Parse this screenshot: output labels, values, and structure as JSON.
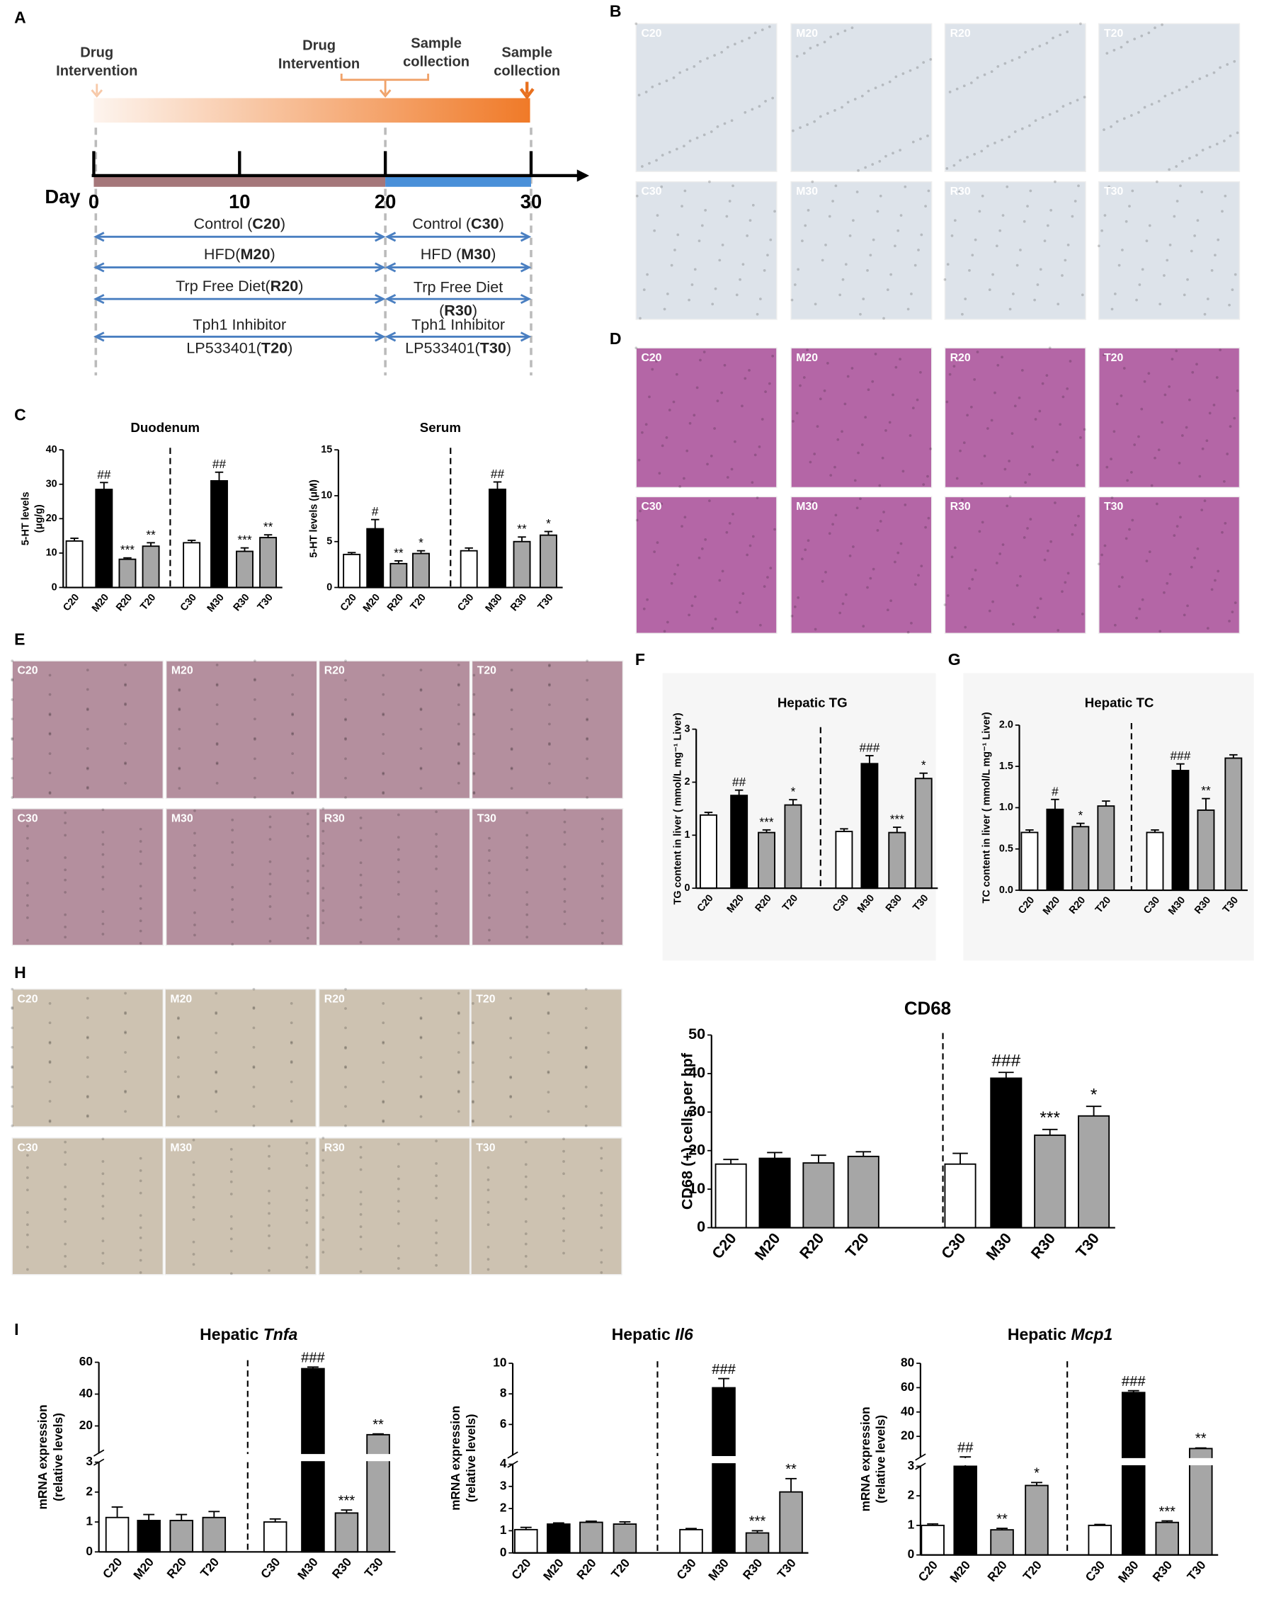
{
  "panel_labels": [
    "A",
    "B",
    "C",
    "D",
    "E",
    "F",
    "G",
    "H",
    "I"
  ],
  "timeline": {
    "events": [
      [
        "Drug",
        "Intervention"
      ],
      [
        "Drug",
        "Intervention"
      ],
      [
        "Sample",
        "collection"
      ],
      [
        "Sample",
        "collection"
      ]
    ],
    "day_label": "Day",
    "days": [
      0,
      10,
      20,
      30
    ],
    "arms_first": [
      {
        "lines": [
          [
            "Control (",
            {
              "bold": "C20"
            },
            ")"
          ]
        ]
      },
      {
        "lines": [
          [
            "HFD(",
            {
              "bold": "M20"
            },
            ")"
          ]
        ]
      },
      {
        "lines": [
          [
            "Trp Free Diet(",
            {
              "bold": "R20"
            },
            ")"
          ]
        ]
      },
      {
        "lines": [
          [
            "Tph1 Inhibitor"
          ],
          [
            "LP533401(",
            {
              "bold": "T20"
            },
            ")"
          ]
        ]
      }
    ],
    "arms_second": [
      {
        "lines": [
          [
            "Control (",
            {
              "bold": "C30"
            },
            ")"
          ]
        ]
      },
      {
        "lines": [
          [
            "HFD (",
            {
              "bold": "M30"
            },
            ")"
          ]
        ]
      },
      {
        "lines": [
          [
            "Trp Free Diet"
          ],
          [
            "(",
            {
              "bold": "R30"
            },
            ")"
          ]
        ]
      },
      {
        "lines": [
          [
            "Tph1 Inhibitor"
          ],
          [
            "LP533401(",
            {
              "bold": "T30"
            },
            ")"
          ]
        ]
      }
    ]
  },
  "micrographs": [
    {
      "labels": [
        "C20",
        "M20",
        "R20",
        "T20",
        "C30",
        "M30",
        "R30",
        "T30"
      ],
      "color": "#dde3ea"
    },
    {
      "labels": [
        "C20",
        "M20",
        "R20",
        "T20",
        "C30",
        "M30",
        "R30",
        "T30"
      ],
      "color": "#b466a6"
    },
    {
      "labels": [
        "C20",
        "M20",
        "R20",
        "T20",
        "C30",
        "M30",
        "R30",
        "T30"
      ],
      "color": "#b48f9e"
    },
    {
      "labels": [
        "C20",
        "M20",
        "R20",
        "T20",
        "C30",
        "M30",
        "R30",
        "T30"
      ],
      "color": "#cdc2b1"
    }
  ],
  "chart_data": [
    {
      "type": "bar",
      "title": "Duodenum",
      "ylabel": [
        "5-HT levels",
        "(μg/g)"
      ],
      "categories": [
        "C20",
        "M20",
        "R20",
        "T20",
        "C30",
        "M30",
        "R30",
        "T30"
      ],
      "values": [
        13.5,
        28.5,
        8.2,
        12,
        13,
        31,
        10.5,
        14.5
      ],
      "errors": [
        0.8,
        2,
        0.4,
        1,
        0.7,
        2.5,
        1,
        0.8
      ],
      "annotations": [
        null,
        "##",
        "***",
        "**",
        null,
        "##",
        "***",
        "**"
      ],
      "colors": [
        "#ffffff",
        "#000000",
        "#a6a6a6",
        "#a6a6a6",
        "#ffffff",
        "#000000",
        "#a6a6a6",
        "#a6a6a6"
      ],
      "ylim": [
        0,
        40
      ],
      "yticks": [
        0,
        10,
        20,
        30,
        40
      ]
    },
    {
      "type": "bar",
      "title": "Serum",
      "ylabel": [
        "5-HT levels (μM)"
      ],
      "categories": [
        "C20",
        "M20",
        "R20",
        "T20",
        "C30",
        "M30",
        "R30",
        "T30"
      ],
      "values": [
        3.6,
        6.4,
        2.6,
        3.7,
        4.0,
        10.7,
        5.0,
        5.7
      ],
      "errors": [
        0.2,
        1,
        0.3,
        0.3,
        0.3,
        0.8,
        0.5,
        0.4
      ],
      "annotations": [
        null,
        "#",
        "**",
        "*",
        null,
        "##",
        "**",
        "*"
      ],
      "colors": [
        "#ffffff",
        "#000000",
        "#a6a6a6",
        "#a6a6a6",
        "#ffffff",
        "#000000",
        "#a6a6a6",
        "#a6a6a6"
      ],
      "ylim": [
        0,
        15
      ],
      "yticks": [
        0,
        5,
        10,
        15
      ]
    },
    {
      "type": "bar",
      "title": "Hepatic TG",
      "ylabel": [
        "TG content in liver ( mmol/L mg⁻¹ Liver)"
      ],
      "categories": [
        "C20",
        "M20",
        "R20",
        "T20",
        "C30",
        "M30",
        "R30",
        "T30"
      ],
      "values": [
        1.38,
        1.75,
        1.05,
        1.57,
        1.07,
        2.35,
        1.05,
        2.07
      ],
      "errors": [
        0.05,
        0.1,
        0.05,
        0.1,
        0.05,
        0.15,
        0.1,
        0.1
      ],
      "annotations": [
        null,
        "##",
        "***",
        "*",
        null,
        "###",
        "***",
        "*"
      ],
      "colors": [
        "#ffffff",
        "#000000",
        "#a6a6a6",
        "#a6a6a6",
        "#ffffff",
        "#000000",
        "#a6a6a6",
        "#a6a6a6"
      ],
      "ylim": [
        0,
        3
      ],
      "yticks": [
        0,
        1,
        2,
        3
      ]
    },
    {
      "type": "bar",
      "title": "Hepatic TC",
      "ylabel": [
        "TC content in liver ( mmol/L mg⁻¹ Liver)"
      ],
      "categories": [
        "C20",
        "M20",
        "R20",
        "T20",
        "C30",
        "M30",
        "R30",
        "T30"
      ],
      "values": [
        0.7,
        0.98,
        0.77,
        1.02,
        0.7,
        1.45,
        0.97,
        1.6
      ],
      "errors": [
        0.03,
        0.12,
        0.04,
        0.06,
        0.03,
        0.08,
        0.14,
        0.04
      ],
      "annotations": [
        null,
        "#",
        "*",
        null,
        null,
        "###",
        "**",
        null
      ],
      "colors": [
        "#ffffff",
        "#000000",
        "#a6a6a6",
        "#a6a6a6",
        "#ffffff",
        "#000000",
        "#a6a6a6",
        "#a6a6a6"
      ],
      "ylim": [
        0,
        2
      ],
      "yticks": [
        {
          "value": 0,
          "label": "0.0"
        },
        0.5,
        {
          "value": 1,
          "label": "1.0"
        },
        1.5,
        {
          "value": 2,
          "label": "2.0"
        }
      ]
    },
    {
      "type": "bar",
      "title": "CD68",
      "ylabel": [
        "CD68 (+) cells per hpf"
      ],
      "categories": [
        "C20",
        "M20",
        "R20",
        "T20",
        "C30",
        "M30",
        "R30",
        "T30"
      ],
      "values": [
        16.5,
        18,
        16.8,
        18.5,
        16.5,
        38.8,
        24,
        29
      ],
      "errors": [
        1.2,
        1.5,
        2,
        1.2,
        2.8,
        1.5,
        1.5,
        2.5
      ],
      "annotations": [
        null,
        null,
        null,
        null,
        null,
        "###",
        "***",
        "*"
      ],
      "colors": [
        "#ffffff",
        "#000000",
        "#a6a6a6",
        "#a6a6a6",
        "#ffffff",
        "#000000",
        "#a6a6a6",
        "#a6a6a6"
      ],
      "ylim": [
        0,
        50
      ],
      "yticks": [
        0,
        10,
        20,
        30,
        40,
        50
      ]
    },
    {
      "type": "bar",
      "title": [
        "Hepatic ",
        "Tnfa"
      ],
      "ylabel": [
        "mRNA expression",
        "(relative levels)"
      ],
      "categories": [
        "C20",
        "M20",
        "R20",
        "T20",
        "C30",
        "M30",
        "R30",
        "T30"
      ],
      "values": [
        1.15,
        1.05,
        1.05,
        1.15,
        1.0,
        56,
        1.3,
        14.5
      ],
      "errors": [
        0.35,
        0.2,
        0.2,
        0.2,
        0.1,
        1,
        0.1,
        0.5
      ],
      "annotations": [
        null,
        null,
        null,
        null,
        null,
        "###",
        "***",
        "**"
      ],
      "colors": [
        "#ffffff",
        "#000000",
        "#a6a6a6",
        "#a6a6a6",
        "#ffffff",
        "#000000",
        "#a6a6a6",
        "#a6a6a6"
      ],
      "ylim": [
        0,
        60
      ],
      "ybreak": 3,
      "yticks": [
        0,
        1,
        2,
        3,
        20,
        40,
        60
      ]
    },
    {
      "type": "bar",
      "title": [
        "Hepatic ",
        "Il6"
      ],
      "ylabel": [
        "mRNA expression",
        "(relative levels)"
      ],
      "categories": [
        "C20",
        "M20",
        "R20",
        "T20",
        "C30",
        "M30",
        "R30",
        "T30"
      ],
      "values": [
        1.05,
        1.3,
        1.38,
        1.3,
        1.05,
        8.4,
        0.9,
        2.75
      ],
      "errors": [
        0.1,
        0.05,
        0.05,
        0.1,
        0.05,
        0.6,
        0.1,
        0.6
      ],
      "annotations": [
        null,
        null,
        null,
        null,
        null,
        "###",
        "***",
        "**"
      ],
      "colors": [
        "#ffffff",
        "#000000",
        "#a6a6a6",
        "#a6a6a6",
        "#ffffff",
        "#000000",
        "#a6a6a6",
        "#a6a6a6"
      ],
      "ylim": [
        0,
        10
      ],
      "ybreak": 4,
      "yticks": [
        0,
        1,
        2,
        3,
        4,
        6,
        8,
        10
      ]
    },
    {
      "type": "bar",
      "title": [
        "Hepatic ",
        "Mcp1"
      ],
      "ylabel": [
        "mRNA expression",
        "(relative levels)"
      ],
      "categories": [
        "C20",
        "M20",
        "R20",
        "T20",
        "C30",
        "M30",
        "R30",
        "T30"
      ],
      "values": [
        1.0,
        3.0,
        0.85,
        2.35,
        1.0,
        56,
        1.1,
        10
      ],
      "errors": [
        0.05,
        0.15,
        0.05,
        0.1,
        0.03,
        1.5,
        0.05,
        0.5
      ],
      "annotations": [
        null,
        "##",
        "**",
        "*",
        null,
        "###",
        "***",
        "**"
      ],
      "colors": [
        "#ffffff",
        "#000000",
        "#a6a6a6",
        "#a6a6a6",
        "#ffffff",
        "#000000",
        "#a6a6a6",
        "#a6a6a6"
      ],
      "ylim": [
        0,
        80
      ],
      "ybreak": 3,
      "yticks": [
        0,
        1,
        2,
        3,
        20,
        40,
        60,
        80
      ]
    }
  ]
}
